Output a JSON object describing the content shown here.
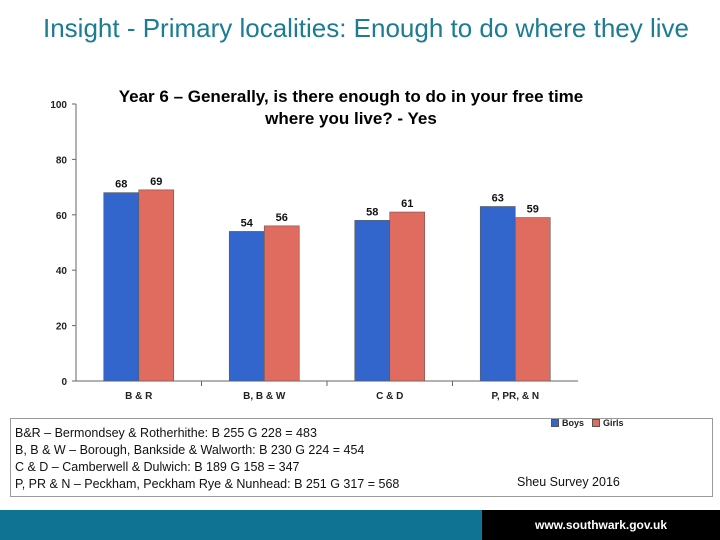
{
  "slide": {
    "title": "Insight - Primary localities: Enough to do where they live"
  },
  "chart_data": {
    "type": "bar",
    "title": "Year 6 – Generally, is there enough to do in your free time where you live? - Yes",
    "categories": [
      "B & R",
      "B, B & W",
      "C & D",
      "P, PR, & N"
    ],
    "series": [
      {
        "name": "Boys",
        "values": [
          68,
          54,
          58,
          63
        ],
        "color": "#3366cc"
      },
      {
        "name": "Girls",
        "values": [
          69,
          56,
          61,
          59
        ],
        "color": "#e06b5f"
      }
    ],
    "ylim": [
      0,
      100
    ],
    "yticks": [
      0,
      20,
      40,
      60,
      80,
      100
    ],
    "grid": false,
    "legend": "bottom-right",
    "data_labels": true
  },
  "notes": [
    "B&R – Bermondsey & Rotherhithe: B 255 G 228 = 483",
    "B, B & W – Borough, Bankside & Walworth: B 230 G 224 = 454",
    "C & D – Camberwell & Dulwich: B 189  G 158 = 347",
    "P, PR & N – Peckham, Peckham Rye & Nunhead: B 251  G 317 = 568"
  ],
  "source": "Sheu Survey 2016",
  "footer": {
    "url": "www.southwark.gov.uk",
    "bar_color": "#0f7393"
  }
}
